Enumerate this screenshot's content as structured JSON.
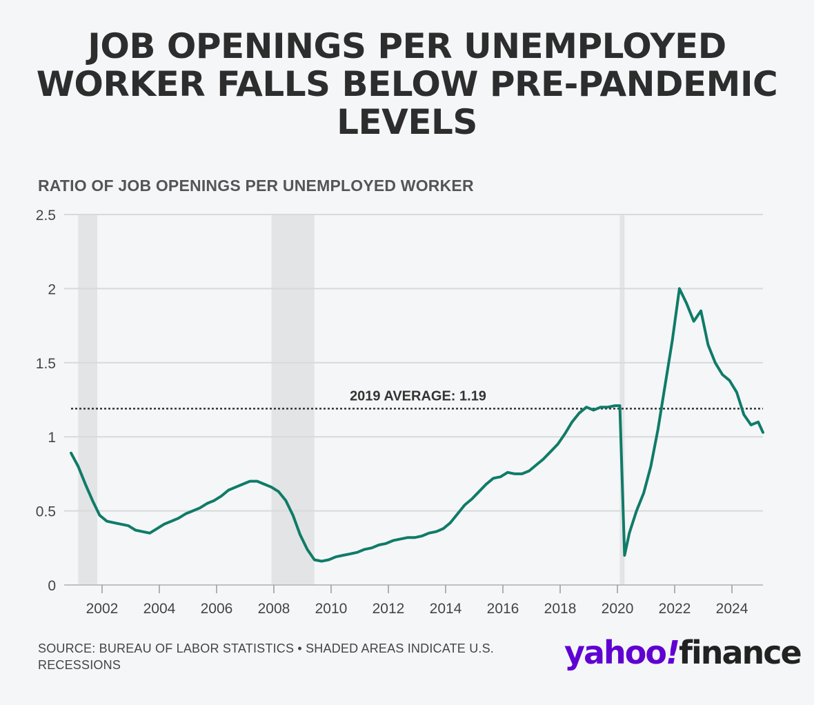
{
  "title": "JOB OPENINGS PER UNEMPLOYED WORKER FALLS BELOW PRE-PANDEMIC LEVELS",
  "source": "SOURCE: BUREAU OF LABOR STATISTICS • SHADED AREAS INDICATE U.S. RECESSIONS",
  "logo": {
    "yahoo": "yahoo",
    "bang": "!",
    "finance": "finance"
  },
  "colors": {
    "line": "#0f7b68",
    "recession": "#e3e4e6",
    "grid": "#d8d9db",
    "background": "#f5f6f7"
  },
  "chart_data": {
    "type": "line",
    "title": "JOB OPENINGS PER UNEMPLOYED WORKER FALLS BELOW PRE-PANDEMIC LEVELS",
    "ylabel": "RATIO OF JOB OPENINGS PER UNEMPLOYED WORKER",
    "xlabel": "",
    "ylim": [
      0,
      2.5
    ],
    "xlim": [
      "2000-12",
      "2025-02"
    ],
    "yticks": [
      "0",
      "0.5",
      "1",
      "1.5",
      "2",
      "2.5"
    ],
    "xticks": [
      "2002",
      "2004",
      "2006",
      "2008",
      "2010",
      "2012",
      "2014",
      "2016",
      "2018",
      "2020",
      "2022",
      "2024"
    ],
    "grid": "horizontal",
    "reference_line": {
      "value": 1.19,
      "label": "2019 AVERAGE: 1.19",
      "style": "dotted"
    },
    "recessions": [
      {
        "start": "2001-03",
        "end": "2001-11"
      },
      {
        "start": "2007-12",
        "end": "2009-06"
      },
      {
        "start": "2020-02",
        "end": "2020-04"
      }
    ],
    "x": [
      "2000-12",
      "2001-03",
      "2001-06",
      "2001-09",
      "2001-12",
      "2002-03",
      "2002-06",
      "2002-09",
      "2002-12",
      "2003-03",
      "2003-06",
      "2003-09",
      "2003-12",
      "2004-03",
      "2004-06",
      "2004-09",
      "2004-12",
      "2005-03",
      "2005-06",
      "2005-09",
      "2005-12",
      "2006-03",
      "2006-06",
      "2006-09",
      "2006-12",
      "2007-03",
      "2007-06",
      "2007-09",
      "2007-12",
      "2008-03",
      "2008-06",
      "2008-09",
      "2008-12",
      "2009-03",
      "2009-06",
      "2009-09",
      "2009-12",
      "2010-03",
      "2010-06",
      "2010-09",
      "2010-12",
      "2011-03",
      "2011-06",
      "2011-09",
      "2011-12",
      "2012-03",
      "2012-06",
      "2012-09",
      "2012-12",
      "2013-03",
      "2013-06",
      "2013-09",
      "2013-12",
      "2014-03",
      "2014-06",
      "2014-09",
      "2014-12",
      "2015-03",
      "2015-06",
      "2015-09",
      "2015-12",
      "2016-03",
      "2016-06",
      "2016-09",
      "2016-12",
      "2017-03",
      "2017-06",
      "2017-09",
      "2017-12",
      "2018-03",
      "2018-06",
      "2018-09",
      "2018-12",
      "2019-03",
      "2019-06",
      "2019-09",
      "2019-12",
      "2020-02",
      "2020-04",
      "2020-06",
      "2020-09",
      "2020-12",
      "2021-03",
      "2021-06",
      "2021-09",
      "2021-12",
      "2022-03",
      "2022-06",
      "2022-09",
      "2022-12",
      "2023-03",
      "2023-06",
      "2023-09",
      "2023-12",
      "2024-03",
      "2024-06",
      "2024-09",
      "2024-12",
      "2025-02"
    ],
    "series": [
      {
        "values": [
          0.89,
          0.8,
          0.68,
          0.57,
          0.47,
          0.43,
          0.42,
          0.41,
          0.4,
          0.37,
          0.36,
          0.35,
          0.38,
          0.41,
          0.43,
          0.45,
          0.48,
          0.5,
          0.52,
          0.55,
          0.57,
          0.6,
          0.64,
          0.66,
          0.68,
          0.7,
          0.7,
          0.68,
          0.66,
          0.63,
          0.57,
          0.47,
          0.34,
          0.24,
          0.17,
          0.16,
          0.17,
          0.19,
          0.2,
          0.21,
          0.22,
          0.24,
          0.25,
          0.27,
          0.28,
          0.3,
          0.31,
          0.32,
          0.32,
          0.33,
          0.35,
          0.36,
          0.38,
          0.42,
          0.48,
          0.54,
          0.58,
          0.63,
          0.68,
          0.72,
          0.73,
          0.76,
          0.75,
          0.75,
          0.77,
          0.81,
          0.85,
          0.9,
          0.95,
          1.02,
          1.1,
          1.16,
          1.2,
          1.18,
          1.2,
          1.2,
          1.21,
          1.21,
          0.2,
          0.35,
          0.5,
          0.62,
          0.8,
          1.05,
          1.35,
          1.65,
          2.0,
          1.9,
          1.78,
          1.85,
          1.62,
          1.5,
          1.42,
          1.38,
          1.3,
          1.15,
          1.08,
          1.1,
          1.03
        ]
      }
    ]
  }
}
